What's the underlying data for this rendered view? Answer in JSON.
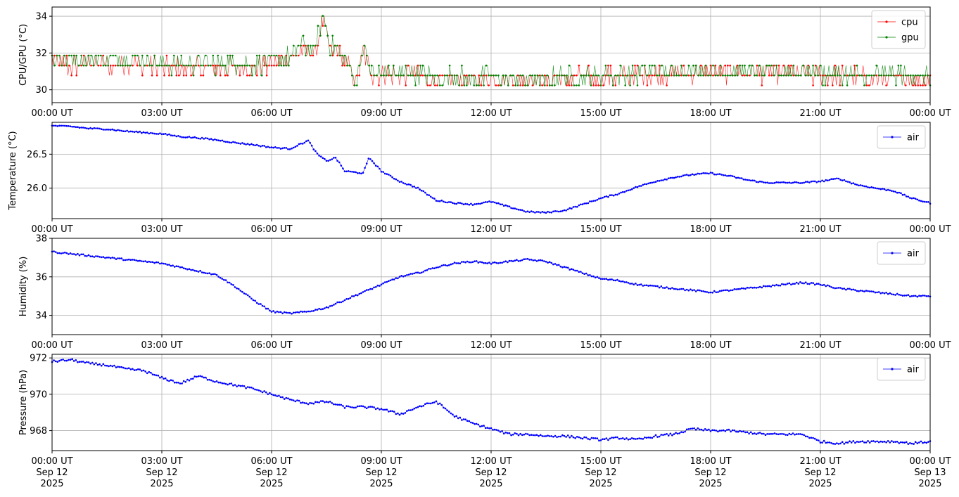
{
  "chart_data": [
    {
      "type": "line",
      "ylabel": "CPU/GPU (°C)",
      "xlim": [
        "2025-09-12T00:00Z",
        "2025-09-13T00:00Z"
      ],
      "ylim": [
        29.3,
        34.5
      ],
      "yticks": [
        30,
        32,
        34
      ],
      "xtick_labels": [
        "00:00 UT",
        "03:00 UT",
        "06:00 UT",
        "09:00 UT",
        "12:00 UT",
        "15:00 UT",
        "18:00 UT",
        "21:00 UT",
        "00:00 UT"
      ],
      "grid": true,
      "legend": "top-right",
      "x": [
        "00:00",
        "00:30",
        "01:00",
        "01:30",
        "02:00",
        "02:30",
        "03:00",
        "03:30",
        "04:00",
        "04:30",
        "05:00",
        "05:30",
        "06:00",
        "06:30",
        "06:50",
        "07:10",
        "07:25",
        "07:35",
        "07:50",
        "08:10",
        "08:20",
        "08:30",
        "08:45",
        "09:00",
        "09:30",
        "10:00",
        "10:30",
        "11:00",
        "12:00",
        "13:00",
        "14:00",
        "15:00",
        "16:00",
        "17:00",
        "18:00",
        "19:00",
        "20:00",
        "21:00",
        "22:00",
        "23:00",
        "24:00"
      ],
      "series": [
        {
          "name": "cpu",
          "color": "#ff0000",
          "values": [
            31.5,
            31.3,
            31.4,
            31.3,
            31.4,
            31.3,
            31.2,
            31.2,
            31.2,
            31.2,
            31.2,
            31.2,
            31.3,
            31.6,
            32.2,
            32.0,
            33.8,
            32.2,
            32.0,
            31.0,
            30.5,
            32.2,
            30.8,
            30.8,
            30.8,
            30.8,
            30.6,
            30.6,
            30.6,
            30.6,
            30.6,
            30.7,
            30.8,
            30.9,
            30.9,
            30.9,
            30.9,
            30.8,
            30.7,
            30.6,
            30.6
          ]
        },
        {
          "name": "gpu",
          "color": "#008000",
          "values": [
            31.8,
            31.6,
            31.7,
            31.6,
            31.7,
            31.6,
            31.4,
            31.4,
            31.4,
            31.4,
            31.4,
            31.4,
            31.5,
            31.8,
            32.5,
            32.2,
            34.2,
            32.4,
            32.1,
            31.0,
            30.6,
            32.3,
            30.9,
            30.9,
            30.9,
            30.9,
            30.7,
            30.7,
            30.7,
            30.6,
            30.7,
            30.8,
            30.9,
            31.0,
            31.0,
            31.0,
            31.0,
            30.9,
            30.8,
            30.8,
            30.7
          ]
        }
      ]
    },
    {
      "type": "line",
      "ylabel": "Temperature (°C)",
      "xlim": [
        "2025-09-12T00:00Z",
        "2025-09-13T00:00Z"
      ],
      "ylim": [
        25.55,
        26.97
      ],
      "yticks": [
        26.0,
        26.5
      ],
      "ytick_labels": [
        "26.0",
        "26.5"
      ],
      "xtick_labels": [
        "00:00 UT",
        "03:00 UT",
        "06:00 UT",
        "09:00 UT",
        "12:00 UT",
        "15:00 UT",
        "18:00 UT",
        "21:00 UT",
        "00:00 UT"
      ],
      "grid": true,
      "legend": "top-right",
      "x": [
        "00:00",
        "00:30",
        "01:00",
        "01:30",
        "02:00",
        "02:30",
        "03:00",
        "03:30",
        "04:00",
        "04:30",
        "05:00",
        "05:30",
        "06:00",
        "06:30",
        "07:00",
        "07:15",
        "07:30",
        "07:45",
        "08:00",
        "08:30",
        "08:40",
        "09:00",
        "09:30",
        "10:00",
        "10:30",
        "11:00",
        "11:30",
        "12:00",
        "12:30",
        "13:00",
        "13:30",
        "14:00",
        "14:30",
        "15:00",
        "15:30",
        "16:00",
        "16:30",
        "17:00",
        "17:30",
        "18:00",
        "18:30",
        "19:00",
        "19:30",
        "20:00",
        "20:30",
        "21:00",
        "21:30",
        "22:00",
        "22:30",
        "23:00",
        "23:30",
        "24:00"
      ],
      "series": [
        {
          "name": "air",
          "color": "#0000ff",
          "values": [
            26.92,
            26.91,
            26.88,
            26.87,
            26.84,
            26.82,
            26.8,
            26.76,
            26.74,
            26.71,
            26.67,
            26.64,
            26.6,
            26.58,
            26.7,
            26.5,
            26.4,
            26.45,
            26.25,
            26.22,
            26.45,
            26.25,
            26.1,
            26.0,
            25.82,
            25.78,
            25.76,
            25.8,
            25.72,
            25.65,
            25.64,
            25.67,
            25.76,
            25.85,
            25.92,
            26.02,
            26.1,
            26.16,
            26.2,
            26.22,
            26.18,
            26.12,
            26.08,
            26.08,
            26.08,
            26.1,
            26.14,
            26.05,
            26.0,
            25.96,
            25.85,
            25.78
          ]
        }
      ]
    },
    {
      "type": "line",
      "ylabel": "Humidity (%)",
      "xlim": [
        "2025-09-12T00:00Z",
        "2025-09-13T00:00Z"
      ],
      "ylim": [
        33.0,
        38.0
      ],
      "yticks": [
        34,
        36,
        38
      ],
      "xtick_labels": [
        "00:00 UT",
        "03:00 UT",
        "06:00 UT",
        "09:00 UT",
        "12:00 UT",
        "15:00 UT",
        "18:00 UT",
        "21:00 UT",
        "00:00 UT"
      ],
      "grid": true,
      "legend": "top-right",
      "x": [
        "00:00",
        "00:30",
        "01:00",
        "01:30",
        "02:00",
        "02:30",
        "03:00",
        "03:30",
        "04:00",
        "04:30",
        "05:00",
        "05:30",
        "06:00",
        "06:30",
        "07:00",
        "07:30",
        "08:00",
        "08:30",
        "09:00",
        "09:30",
        "10:00",
        "10:30",
        "11:00",
        "11:30",
        "12:00",
        "12:30",
        "13:00",
        "13:30",
        "14:00",
        "14:30",
        "15:00",
        "15:30",
        "16:00",
        "16:30",
        "17:00",
        "17:30",
        "18:00",
        "18:30",
        "19:00",
        "19:30",
        "20:00",
        "20:30",
        "21:00",
        "21:30",
        "22:00",
        "22:30",
        "23:00",
        "23:30",
        "24:00"
      ],
      "series": [
        {
          "name": "air",
          "color": "#0000ff",
          "values": [
            37.3,
            37.2,
            37.1,
            37.0,
            36.9,
            36.8,
            36.7,
            36.5,
            36.3,
            36.1,
            35.5,
            34.8,
            34.2,
            34.1,
            34.2,
            34.4,
            34.8,
            35.2,
            35.6,
            36.0,
            36.2,
            36.5,
            36.7,
            36.8,
            36.7,
            36.8,
            36.9,
            36.8,
            36.5,
            36.2,
            35.9,
            35.8,
            35.6,
            35.5,
            35.4,
            35.3,
            35.2,
            35.3,
            35.4,
            35.5,
            35.6,
            35.7,
            35.6,
            35.4,
            35.3,
            35.2,
            35.1,
            35.0,
            35.0
          ]
        }
      ]
    },
    {
      "type": "line",
      "ylabel": "Pressure (hPa)",
      "xlim": [
        "2025-09-12T00:00Z",
        "2025-09-13T00:00Z"
      ],
      "ylim": [
        966.9,
        972.2
      ],
      "yticks": [
        968,
        970,
        972
      ],
      "xtick_labels": [
        "00:00 UT\nSep 12\n2025",
        "03:00 UT\nSep 12\n2025",
        "06:00 UT\nSep 12\n2025",
        "09:00 UT\nSep 12\n2025",
        "12:00 UT\nSep 12\n2025",
        "15:00 UT\nSep 12\n2025",
        "18:00 UT\nSep 12\n2025",
        "21:00 UT\nSep 12\n2025",
        "00:00 UT\nSep 13\n2025"
      ],
      "grid": true,
      "legend": "top-right",
      "x": [
        "00:00",
        "00:30",
        "01:00",
        "01:30",
        "02:00",
        "02:30",
        "03:00",
        "03:30",
        "04:00",
        "04:30",
        "05:00",
        "05:30",
        "06:00",
        "06:30",
        "07:00",
        "07:30",
        "08:00",
        "08:30",
        "09:00",
        "09:30",
        "10:00",
        "10:30",
        "11:00",
        "11:30",
        "12:00",
        "12:30",
        "13:00",
        "13:30",
        "14:00",
        "14:30",
        "15:00",
        "15:30",
        "16:00",
        "16:30",
        "17:00",
        "17:30",
        "18:00",
        "18:30",
        "19:00",
        "19:30",
        "20:00",
        "20:30",
        "21:00",
        "21:30",
        "22:00",
        "22:30",
        "23:00",
        "23:30",
        "24:00"
      ],
      "series": [
        {
          "name": "air",
          "color": "#0000ff",
          "values": [
            971.8,
            971.9,
            971.7,
            971.6,
            971.4,
            971.3,
            970.9,
            970.6,
            971.0,
            970.7,
            970.5,
            970.3,
            970.0,
            969.7,
            969.5,
            969.6,
            969.3,
            969.3,
            969.2,
            968.9,
            969.3,
            969.6,
            968.8,
            968.4,
            968.1,
            967.8,
            967.8,
            967.7,
            967.7,
            967.6,
            967.5,
            967.6,
            967.5,
            967.7,
            967.8,
            968.1,
            968.0,
            968.0,
            967.9,
            967.8,
            967.8,
            967.8,
            967.4,
            967.3,
            967.4,
            967.4,
            967.4,
            967.3,
            967.4
          ]
        }
      ]
    }
  ]
}
